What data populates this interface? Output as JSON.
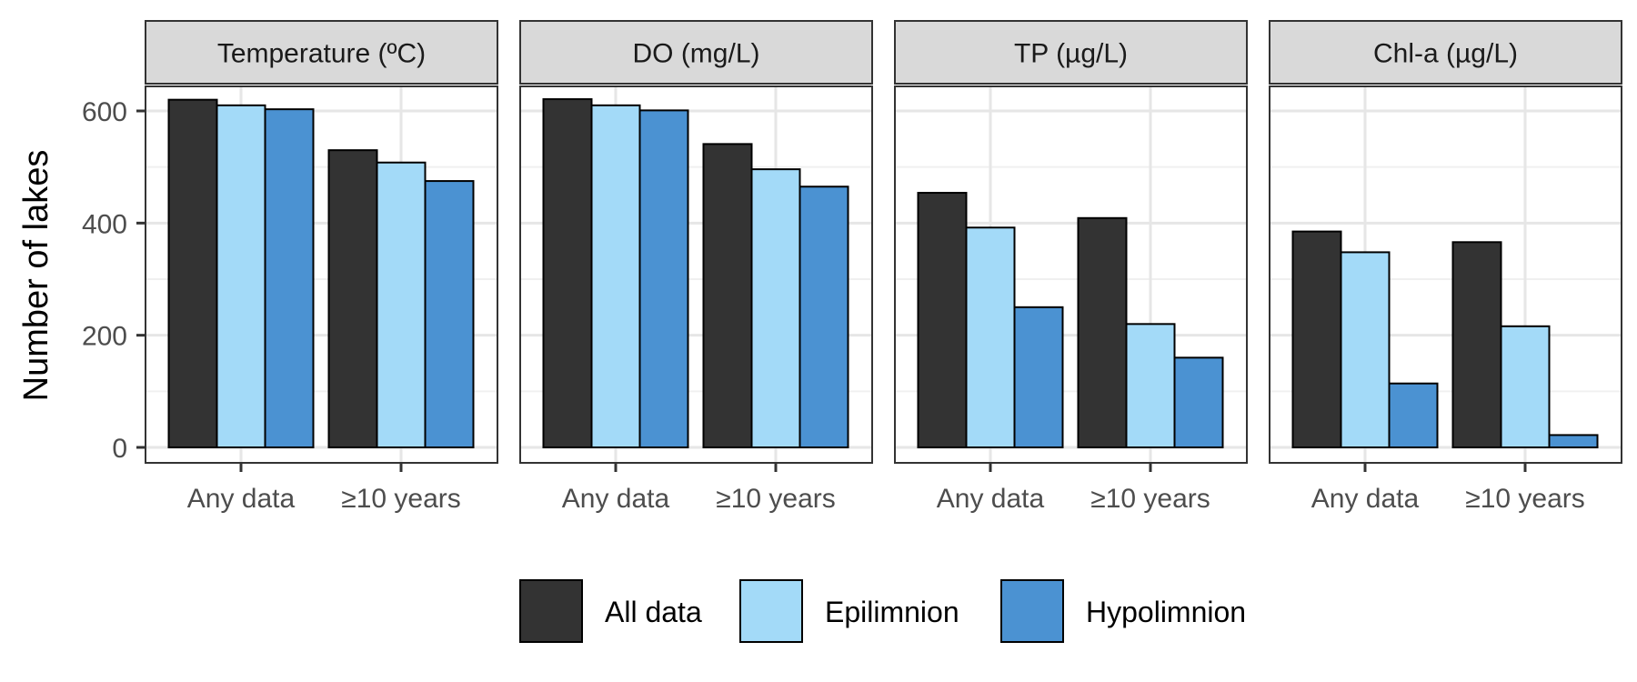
{
  "chart_data": {
    "type": "bar",
    "ylabel": "Number of lakes",
    "ylim": [
      0,
      660
    ],
    "y_ticks": [
      0,
      200,
      400,
      600
    ],
    "y_tick_labels": [
      "0",
      "200",
      "400",
      "600"
    ],
    "grid": true,
    "legend_position": "bottom",
    "categories": [
      "Any data",
      "≥10 years"
    ],
    "series": [
      {
        "name": "All data",
        "color": "#333333"
      },
      {
        "name": "Epilimnion",
        "color": "#A3DAF8"
      },
      {
        "name": "Hypolimnion",
        "color": "#4B92D2"
      }
    ],
    "panels": [
      {
        "title": "Temperature (ºC)",
        "values": {
          "All data": [
            620,
            530
          ],
          "Epilimnion": [
            610,
            508
          ],
          "Hypolimnion": [
            603,
            475
          ]
        }
      },
      {
        "title": "DO (mg/L)",
        "values": {
          "All data": [
            621,
            541
          ],
          "Epilimnion": [
            610,
            496
          ],
          "Hypolimnion": [
            601,
            465
          ]
        }
      },
      {
        "title": "TP (µg/L)",
        "values": {
          "All data": [
            454,
            409
          ],
          "Epilimnion": [
            392,
            220
          ],
          "Hypolimnion": [
            250,
            160
          ]
        }
      },
      {
        "title": "Chl-a (µg/L)",
        "values": {
          "All data": [
            385,
            366
          ],
          "Epilimnion": [
            348,
            216
          ],
          "Hypolimnion": [
            114,
            22
          ]
        }
      }
    ]
  }
}
